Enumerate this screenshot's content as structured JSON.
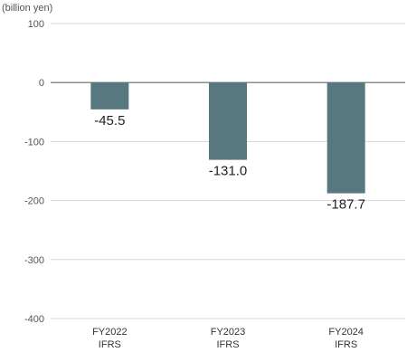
{
  "chart_data": {
    "type": "bar",
    "unit_label": "(billion yen)",
    "categories": [
      [
        "FY2022",
        "IFRS"
      ],
      [
        "FY2023",
        "IFRS"
      ],
      [
        "FY2024",
        "IFRS"
      ]
    ],
    "values": [
      -45.5,
      -131.0,
      -187.7
    ],
    "value_labels": [
      "-45.5",
      "-131.0",
      "-187.7"
    ],
    "yticks": [
      100,
      0,
      -100,
      -200,
      -300,
      -400
    ],
    "ylim": [
      -400,
      100
    ],
    "grid": true,
    "legend": "none",
    "colors": {
      "bar": "#587880",
      "grid": "#d6d6d6",
      "zero_line": "#666666"
    }
  }
}
